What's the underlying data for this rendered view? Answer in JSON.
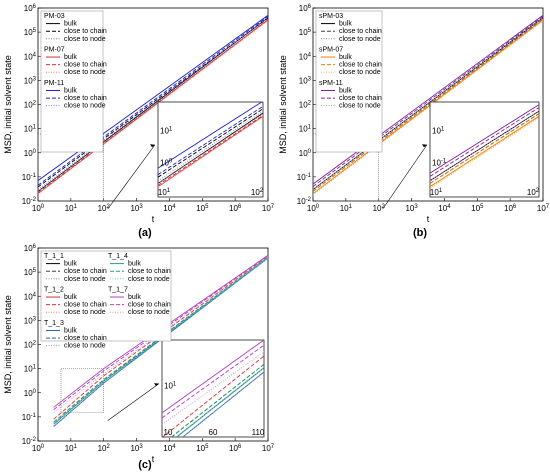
{
  "chart_data": [
    {
      "id": "a",
      "panel_label": "(a)",
      "type": "line",
      "scale": "log-log",
      "xlabel": "t",
      "ylabel": "MSD, initial solvent state",
      "xlim": [
        1,
        10000000
      ],
      "ylim": [
        0.01,
        1000000
      ],
      "x_tick_labels": [
        "10^0",
        "10^1",
        "10^2",
        "10^3",
        "10^4",
        "10^5",
        "10^6",
        "10^7"
      ],
      "y_tick_labels": [
        "10^-2",
        "10^-1",
        "10^0",
        "10^1",
        "10^2",
        "10^3",
        "10^4",
        "10^5",
        "10^6"
      ],
      "legend_groups": [
        {
          "title": "PM-03",
          "entries": [
            "bulk",
            "close to chain",
            "close to node"
          ]
        },
        {
          "title": "PM-07",
          "entries": [
            "bulk",
            "close to chain",
            "close to node"
          ]
        },
        {
          "title": "PM-11",
          "entries": [
            "bulk",
            "close to chain",
            "close to node"
          ]
        }
      ],
      "series": [
        {
          "name": "PM-03 bulk",
          "color": "#000000",
          "dash": "solid",
          "points": [
            [
              1,
              0.025
            ],
            [
              10000000,
              400000
            ]
          ]
        },
        {
          "name": "PM-03 close to chain",
          "color": "#000000",
          "dash": "dash",
          "points": [
            [
              1,
              0.038
            ],
            [
              10000000,
              380000
            ]
          ]
        },
        {
          "name": "PM-03 close to node",
          "color": "#808080",
          "dash": "dot",
          "points": [
            [
              1,
              0.025
            ],
            [
              10000000,
              320000
            ]
          ]
        },
        {
          "name": "PM-07 bulk",
          "color": "#e03030",
          "dash": "solid",
          "points": [
            [
              1,
              0.02
            ],
            [
              10000000,
              330000
            ]
          ]
        },
        {
          "name": "PM-07 close to chain",
          "color": "#e03030",
          "dash": "dash",
          "points": [
            [
              1,
              0.022
            ],
            [
              10000000,
              320000
            ]
          ]
        },
        {
          "name": "PM-07 close to node",
          "color": "#f08080",
          "dash": "dot",
          "points": [
            [
              1,
              0.02
            ],
            [
              10000000,
              300000
            ]
          ]
        },
        {
          "name": "PM-11 bulk",
          "color": "#2020c0",
          "dash": "solid",
          "points": [
            [
              1,
              0.07
            ],
            [
              10000000,
              500000
            ]
          ]
        },
        {
          "name": "PM-11 close to chain",
          "color": "#2020c0",
          "dash": "dash",
          "points": [
            [
              1,
              0.045
            ],
            [
              10000000,
              450000
            ]
          ]
        },
        {
          "name": "PM-11 close to node",
          "color": "#8080e0",
          "dash": "dot",
          "points": [
            [
              1,
              0.03
            ],
            [
              10000000,
              400000
            ]
          ]
        }
      ],
      "inset": {
        "zoom_x": [
          1,
          100
        ],
        "zoom_y": [
          0.01,
          6
        ],
        "y_tick_labels": [
          "10^1",
          "10^0"
        ],
        "x_tick_labels": [
          "10^1",
          "10^2"
        ]
      }
    },
    {
      "id": "b",
      "panel_label": "(b)",
      "type": "line",
      "scale": "log-log",
      "xlabel": "t",
      "ylabel": "MSD, initial solvent state",
      "xlim": [
        1,
        10000000
      ],
      "ylim": [
        0.01,
        1000000
      ],
      "x_tick_labels": [
        "10^0",
        "10^1",
        "10^2",
        "10^3",
        "10^4",
        "10^5",
        "10^6",
        "10^7"
      ],
      "y_tick_labels": [
        "10^-2",
        "10^-1",
        "10^0",
        "10^1",
        "10^2",
        "10^3",
        "10^4",
        "10^5",
        "10^6"
      ],
      "legend_groups": [
        {
          "title": "sPM-03",
          "entries": [
            "bulk",
            "close to chain",
            "close to node"
          ]
        },
        {
          "title": "sPM-07",
          "entries": [
            "bulk",
            "close to chain",
            "close to node"
          ]
        },
        {
          "title": "sPM-11",
          "entries": [
            "bulk",
            "close to chain",
            "close to node"
          ]
        }
      ],
      "series": [
        {
          "name": "sPM-03 bulk",
          "color": "#000000",
          "dash": "solid",
          "points": [
            [
              1,
              0.03
            ],
            [
              10000000,
              400000
            ]
          ]
        },
        {
          "name": "sPM-03 close to chain",
          "color": "#404040",
          "dash": "dash",
          "points": [
            [
              1,
              0.025
            ],
            [
              10000000,
              350000
            ]
          ]
        },
        {
          "name": "sPM-03 close to node",
          "color": "#909090",
          "dash": "dot",
          "points": [
            [
              1,
              0.02
            ],
            [
              10000000,
              300000
            ]
          ]
        },
        {
          "name": "sPM-07 bulk",
          "color": "#f08000",
          "dash": "solid",
          "points": [
            [
              1,
              0.02
            ],
            [
              10000000,
              330000
            ]
          ]
        },
        {
          "name": "sPM-07 close to chain",
          "color": "#f08000",
          "dash": "dash",
          "points": [
            [
              1,
              0.025
            ],
            [
              10000000,
              320000
            ]
          ]
        },
        {
          "name": "sPM-07 close to node",
          "color": "#f5b060",
          "dash": "dot",
          "points": [
            [
              1,
              0.018
            ],
            [
              10000000,
              300000
            ]
          ]
        },
        {
          "name": "sPM-11 bulk",
          "color": "#8020a0",
          "dash": "solid",
          "points": [
            [
              1,
              0.05
            ],
            [
              10000000,
              500000
            ]
          ]
        },
        {
          "name": "sPM-11 close to chain",
          "color": "#8020a0",
          "dash": "dash",
          "points": [
            [
              1,
              0.04
            ],
            [
              10000000,
              450000
            ]
          ]
        },
        {
          "name": "sPM-11 close to node",
          "color": "#c080e0",
          "dash": "dot",
          "points": [
            [
              1,
              0.03
            ],
            [
              10000000,
              400000
            ]
          ]
        }
      ],
      "inset": {
        "zoom_x": [
          1,
          100
        ],
        "zoom_y": [
          0.01,
          6
        ],
        "y_tick_labels": [
          "10^1",
          "10^-1"
        ],
        "x_tick_labels": [
          "10^1",
          "10^2"
        ]
      }
    },
    {
      "id": "c",
      "panel_label": "(c)",
      "type": "line",
      "scale": "log-log",
      "xlabel": "t",
      "ylabel": "MSD, initial solvent state",
      "xlim": [
        1,
        10000000
      ],
      "ylim": [
        0.01,
        1000000
      ],
      "x_tick_labels": [
        "10^0",
        "10^1",
        "10^2",
        "10^3",
        "10^4",
        "10^5",
        "10^6",
        "10^7"
      ],
      "y_tick_labels": [
        "10^-2",
        "10^-1",
        "10^0",
        "10^1",
        "10^2",
        "10^3",
        "10^4",
        "10^5",
        "10^6"
      ],
      "legend_groups": [
        {
          "title": "T_1_1",
          "entries": [
            "bulk",
            "close to chain",
            "close to node"
          ]
        },
        {
          "title": "T_1_2",
          "entries": [
            "bulk",
            "close to chain",
            "close to node"
          ]
        },
        {
          "title": "T_1_3",
          "entries": [
            "bulk",
            "close to chain",
            "close to node"
          ]
        },
        {
          "title": "T_1_4",
          "entries": [
            "bulk",
            "close to chain",
            "close to node"
          ]
        },
        {
          "title": "T_1_7",
          "entries": [
            "bulk",
            "close to chain",
            "close to node"
          ]
        }
      ],
      "series": [
        {
          "name": "T_1_1 bulk",
          "color": "#000000",
          "dash": "solid",
          "points": [
            [
              3,
              0.05
            ],
            [
              100,
              3
            ],
            [
              10000000,
              400000
            ]
          ]
        },
        {
          "name": "T_1_1 close to chain",
          "color": "#404040",
          "dash": "dash",
          "points": [
            [
              3,
              0.06
            ],
            [
              100,
              3.5
            ],
            [
              10000000,
              400000
            ]
          ]
        },
        {
          "name": "T_1_1 close to node",
          "color": "#909090",
          "dash": "dot",
          "points": [
            [
              3,
              0.04
            ],
            [
              100,
              2.5
            ],
            [
              10000000,
              380000
            ]
          ]
        },
        {
          "name": "T_1_2 bulk",
          "color": "#e03030",
          "dash": "solid",
          "points": [
            [
              3,
              0.05
            ],
            [
              100,
              3
            ],
            [
              10000000,
              400000
            ]
          ]
        },
        {
          "name": "T_1_2 close to chain",
          "color": "#e03030",
          "dash": "dash",
          "points": [
            [
              3,
              0.08
            ],
            [
              100,
              5
            ],
            [
              10000000,
              450000
            ]
          ]
        },
        {
          "name": "T_1_2 close to node",
          "color": "#f08080",
          "dash": "dot",
          "points": [
            [
              3,
              0.05
            ],
            [
              100,
              3
            ],
            [
              10000000,
              400000
            ]
          ]
        },
        {
          "name": "T_1_3 bulk",
          "color": "#2060c0",
          "dash": "solid",
          "points": [
            [
              3,
              0.04
            ],
            [
              100,
              2.5
            ],
            [
              10000000,
              380000
            ]
          ]
        },
        {
          "name": "T_1_3 close to chain",
          "color": "#2060c0",
          "dash": "dash",
          "points": [
            [
              3,
              0.05
            ],
            [
              100,
              3
            ],
            [
              10000000,
              400000
            ]
          ]
        },
        {
          "name": "T_1_3 close to node",
          "color": "#80a0e0",
          "dash": "dot",
          "points": [
            [
              3,
              0.04
            ],
            [
              100,
              2.5
            ],
            [
              10000000,
              380000
            ]
          ]
        },
        {
          "name": "T_1_4 bulk",
          "color": "#20a080",
          "dash": "solid",
          "points": [
            [
              3,
              0.05
            ],
            [
              100,
              3
            ],
            [
              10000000,
              400000
            ]
          ]
        },
        {
          "name": "T_1_4 close to chain",
          "color": "#20a080",
          "dash": "dash",
          "points": [
            [
              3,
              0.06
            ],
            [
              100,
              3.5
            ],
            [
              10000000,
              420000
            ]
          ]
        },
        {
          "name": "T_1_4 close to node",
          "color": "#80d0b0",
          "dash": "dot",
          "points": [
            [
              3,
              0.05
            ],
            [
              100,
              3
            ],
            [
              10000000,
              400000
            ]
          ]
        },
        {
          "name": "T_1_7 bulk",
          "color": "#b040c0",
          "dash": "solid",
          "points": [
            [
              3,
              0.25
            ],
            [
              100,
              10
            ],
            [
              10000000,
              500000
            ]
          ]
        },
        {
          "name": "T_1_7 close to chain",
          "color": "#b040c0",
          "dash": "dash",
          "points": [
            [
              3,
              0.2
            ],
            [
              100,
              8
            ],
            [
              10000000,
              480000
            ]
          ]
        },
        {
          "name": "T_1_7 close to node",
          "color": "#d090e0",
          "dash": "dot",
          "points": [
            [
              3,
              0.15
            ],
            [
              100,
              6
            ],
            [
              10000000,
              450000
            ]
          ]
        }
      ],
      "inset": {
        "zoom_x": [
          5,
          100
        ],
        "zoom_y": [
          0.15,
          10
        ],
        "y_tick_labels": [
          "10^1"
        ],
        "x_tick_labels": [
          "10",
          "60",
          "110"
        ]
      }
    }
  ]
}
